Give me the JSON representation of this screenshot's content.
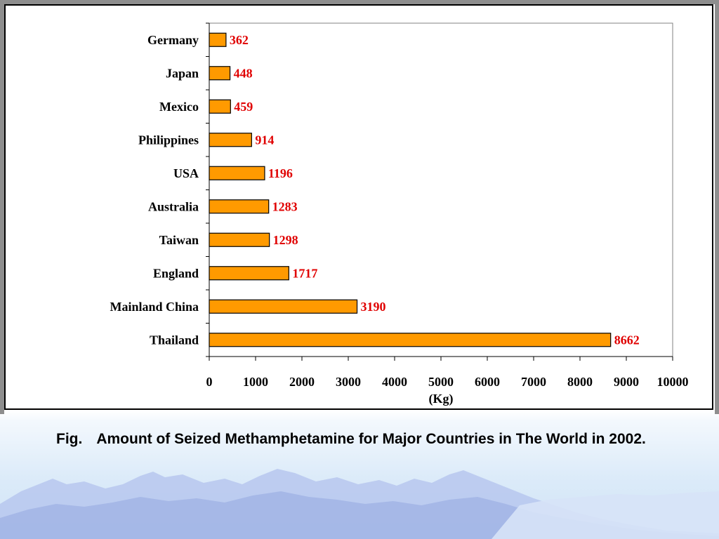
{
  "caption": {
    "prefix": "Fig.",
    "text": "Amount of Seized Methamphetamine for Major Countries in The World in 2002."
  },
  "chart_data": {
    "type": "bar",
    "orientation": "horizontal",
    "categories": [
      "Germany",
      "Japan",
      "Mexico",
      "Philippines",
      "USA",
      "Australia",
      "Taiwan",
      "England",
      "Mainland China",
      "Thailand"
    ],
    "values": [
      362,
      448,
      459,
      914,
      1196,
      1283,
      1298,
      1717,
      3190,
      8662
    ],
    "xlabel": "(Kg)",
    "ylabel": "",
    "xlim": [
      0,
      10000
    ],
    "xticks": [
      0,
      1000,
      2000,
      3000,
      4000,
      5000,
      6000,
      7000,
      8000,
      9000,
      10000
    ],
    "grid": false,
    "legend": "none",
    "colors": {
      "bar_fill": "#ff9a00",
      "bar_stroke": "#000000",
      "value_label": "#e00000"
    }
  }
}
